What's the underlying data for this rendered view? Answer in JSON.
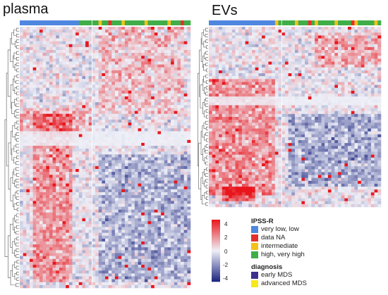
{
  "chart_data": {
    "type": "heatmap",
    "panels": [
      {
        "title": "plasma"
      },
      {
        "title": "EVs"
      }
    ],
    "color_scale": {
      "ticks": [
        "4",
        "2",
        "0",
        "-2",
        "-4"
      ],
      "min": -4,
      "max": 4,
      "low_color": "#1a237e",
      "mid_color": "#eef0f8",
      "high_color": "#e8161c"
    },
    "legend": {
      "groups": [
        {
          "title": "IPSS-R",
          "items": [
            {
              "label": "very low, low",
              "color": "#4f86e0"
            },
            {
              "label": "data NA",
              "color": "#e3312a"
            },
            {
              "label": "intermediate",
              "color": "#f2c21b"
            },
            {
              "label": "high, very high",
              "color": "#3fae49"
            }
          ]
        },
        {
          "title": "diagnosis",
          "items": [
            {
              "label": "early MDS",
              "color": "#3b2f8e"
            },
            {
              "label": "advanced MDS",
              "color": "#f7e81c"
            }
          ]
        }
      ]
    }
  }
}
